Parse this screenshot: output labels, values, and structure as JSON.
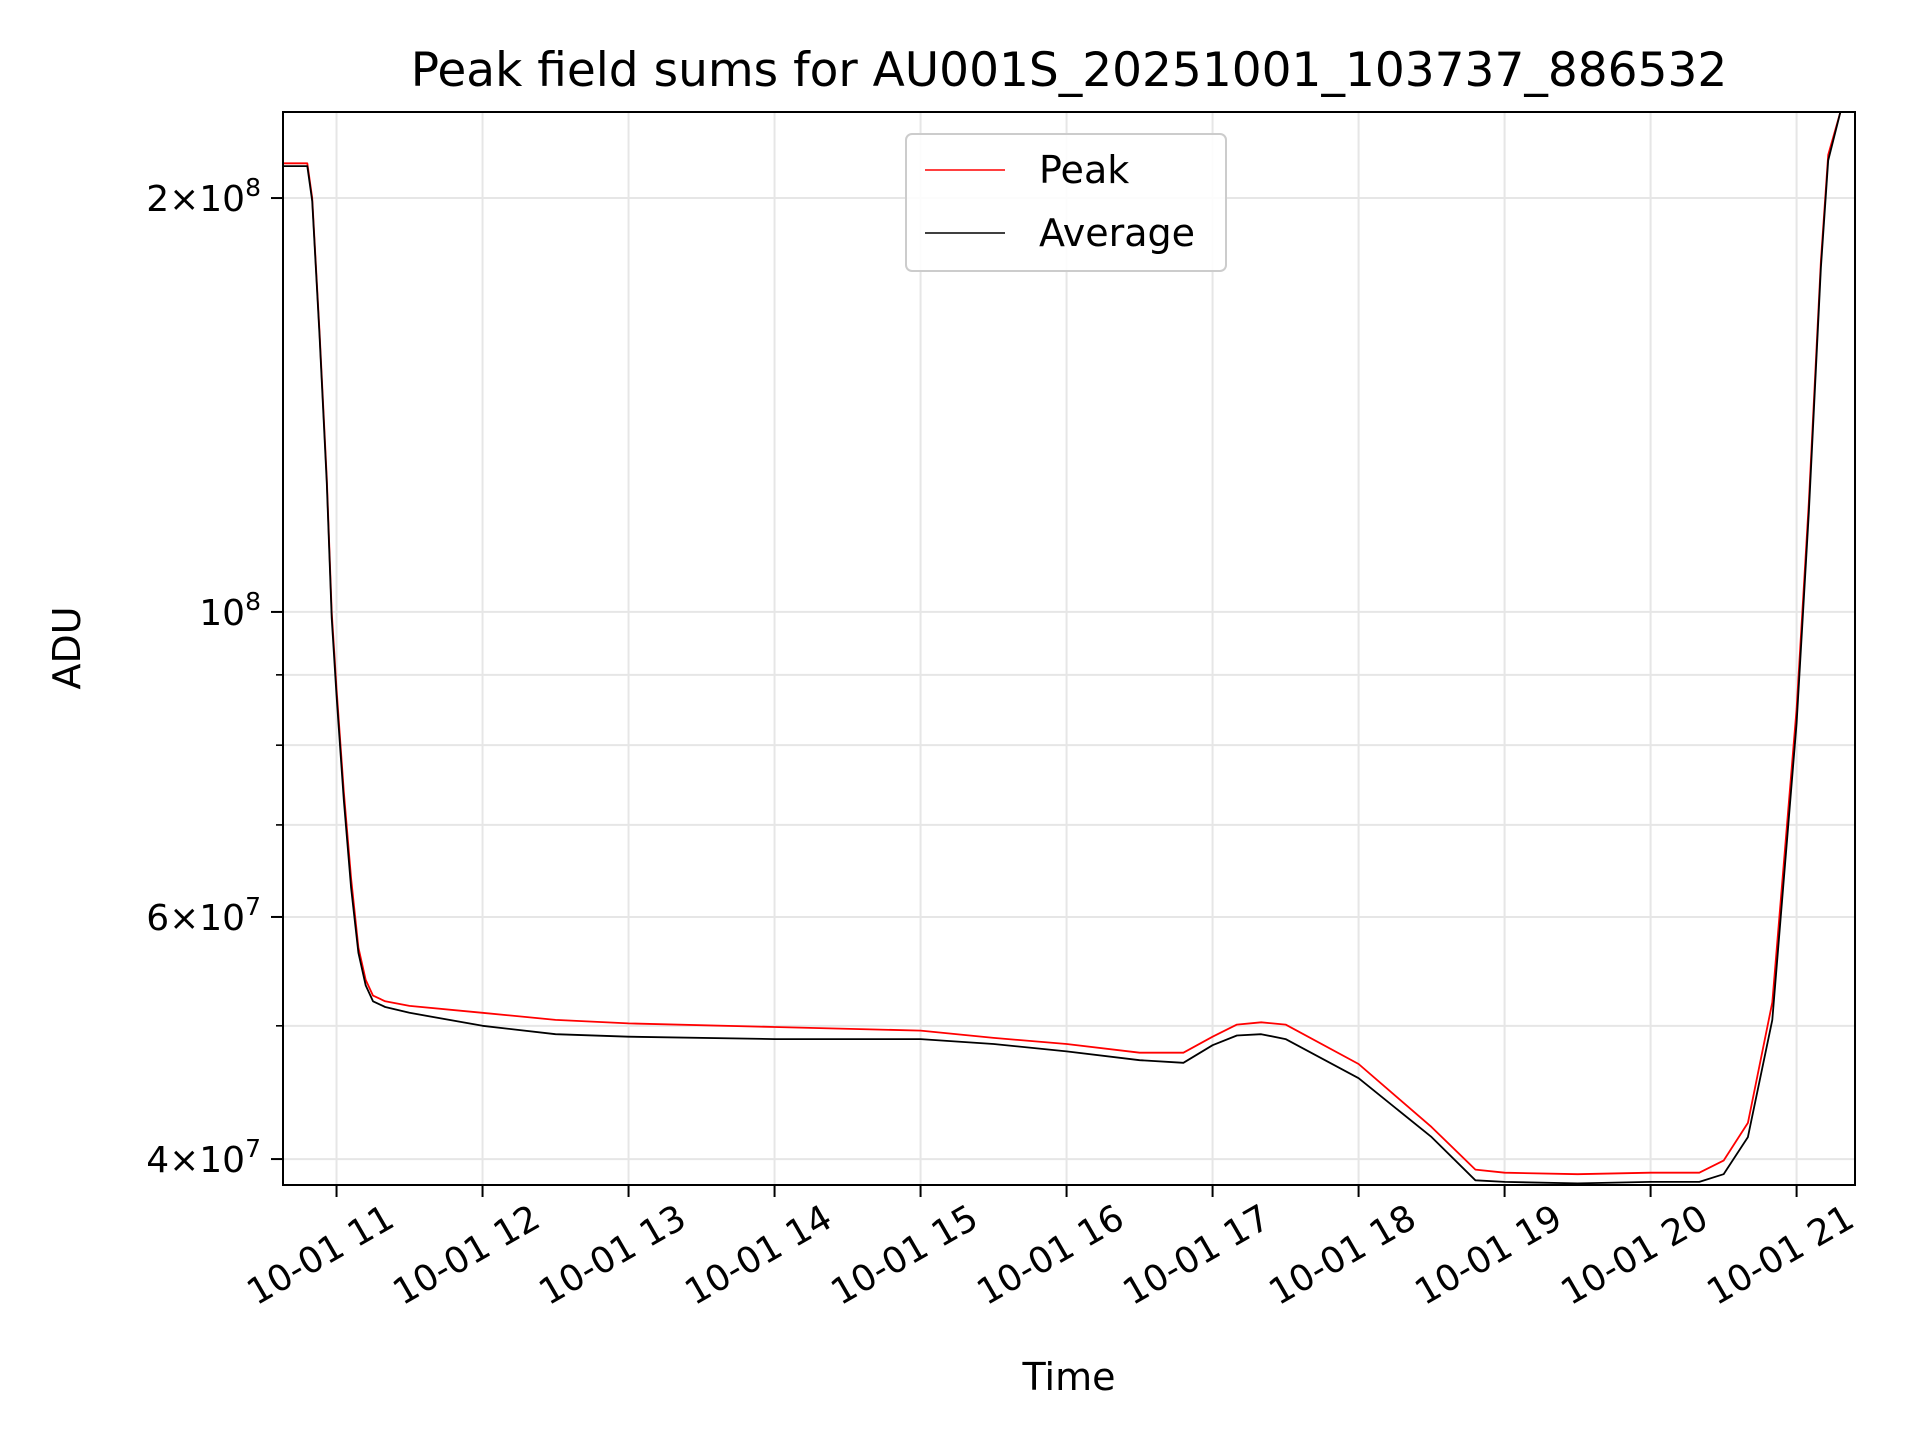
{
  "chart_data": {
    "type": "line",
    "title": "Peak field sums for AU001S_20251001_103737_886532",
    "xlabel": "Time",
    "ylabel": "ADU",
    "yscale": "log",
    "grid": true,
    "legend_position": "top-center",
    "xlim": [
      "2025-10-01 10:38",
      "2025-10-01 21:24"
    ],
    "ylim": [
      38300000,
      231000000
    ],
    "x_ticks": [
      {
        "value": "2025-10-01 11:00",
        "label": "10-01 11"
      },
      {
        "value": "2025-10-01 12:00",
        "label": "10-01 12"
      },
      {
        "value": "2025-10-01 13:00",
        "label": "10-01 13"
      },
      {
        "value": "2025-10-01 14:00",
        "label": "10-01 14"
      },
      {
        "value": "2025-10-01 15:00",
        "label": "10-01 15"
      },
      {
        "value": "2025-10-01 16:00",
        "label": "10-01 16"
      },
      {
        "value": "2025-10-01 17:00",
        "label": "10-01 17"
      },
      {
        "value": "2025-10-01 18:00",
        "label": "10-01 18"
      },
      {
        "value": "2025-10-01 19:00",
        "label": "10-01 19"
      },
      {
        "value": "2025-10-01 20:00",
        "label": "10-01 20"
      },
      {
        "value": "2025-10-01 21:00",
        "label": "10-01 21"
      }
    ],
    "y_ticks_major": [
      {
        "value": 40000000,
        "mant": "4",
        "exp": "7"
      },
      {
        "value": 60000000,
        "mant": "6",
        "exp": "7"
      },
      {
        "value": 100000000,
        "mant": "",
        "exp": "8"
      },
      {
        "value": 200000000,
        "mant": "2",
        "exp": "8"
      }
    ],
    "y_ticks_minor": [
      50000000,
      70000000,
      80000000,
      90000000
    ],
    "series": [
      {
        "name": "Peak",
        "color": "#ff0000",
        "x": [
          "2025-10-01 10:38",
          "2025-10-01 10:48",
          "2025-10-01 10:50",
          "2025-10-01 10:53",
          "2025-10-01 10:56",
          "2025-10-01 10:58",
          "2025-10-01 11:00",
          "2025-10-01 11:03",
          "2025-10-01 11:06",
          "2025-10-01 11:09",
          "2025-10-01 11:12",
          "2025-10-01 11:15",
          "2025-10-01 11:20",
          "2025-10-01 11:30",
          "2025-10-01 12:00",
          "2025-10-01 12:30",
          "2025-10-01 13:00",
          "2025-10-01 14:00",
          "2025-10-01 15:00",
          "2025-10-01 15:30",
          "2025-10-01 16:00",
          "2025-10-01 16:30",
          "2025-10-01 16:48",
          "2025-10-01 17:00",
          "2025-10-01 17:10",
          "2025-10-01 17:20",
          "2025-10-01 17:30",
          "2025-10-01 18:00",
          "2025-10-01 18:30",
          "2025-10-01 18:48",
          "2025-10-01 19:00",
          "2025-10-01 19:30",
          "2025-10-01 20:00",
          "2025-10-01 20:20",
          "2025-10-01 20:30",
          "2025-10-01 20:40",
          "2025-10-01 20:50",
          "2025-10-01 21:00",
          "2025-10-01 21:05",
          "2025-10-01 21:10",
          "2025-10-01 21:13",
          "2025-10-01 21:18",
          "2025-10-01 21:24"
        ],
        "y": [
          212000000,
          212000000,
          200000000,
          160000000,
          125000000,
          100000000,
          88000000,
          74000000,
          64000000,
          57000000,
          54000000,
          52600000,
          52100000,
          51700000,
          51100000,
          50500000,
          50200000,
          49900000,
          49600000,
          49000000,
          48500000,
          47800000,
          47800000,
          49100000,
          50100000,
          50300000,
          50100000,
          46900000,
          42200000,
          39300000,
          39100000,
          39000000,
          39100000,
          39100000,
          39900000,
          42500000,
          52000000,
          85000000,
          120000000,
          180000000,
          215000000,
          231000000,
          231000000
        ]
      },
      {
        "name": "Average",
        "color": "#000000",
        "x": [
          "2025-10-01 10:38",
          "2025-10-01 10:48",
          "2025-10-01 10:50",
          "2025-10-01 10:53",
          "2025-10-01 10:56",
          "2025-10-01 10:58",
          "2025-10-01 11:00",
          "2025-10-01 11:03",
          "2025-10-01 11:06",
          "2025-10-01 11:09",
          "2025-10-01 11:12",
          "2025-10-01 11:15",
          "2025-10-01 11:20",
          "2025-10-01 11:30",
          "2025-10-01 12:00",
          "2025-10-01 12:30",
          "2025-10-01 13:00",
          "2025-10-01 14:00",
          "2025-10-01 15:00",
          "2025-10-01 15:30",
          "2025-10-01 16:00",
          "2025-10-01 16:30",
          "2025-10-01 16:48",
          "2025-10-01 17:00",
          "2025-10-01 17:10",
          "2025-10-01 17:20",
          "2025-10-01 17:30",
          "2025-10-01 18:00",
          "2025-10-01 18:30",
          "2025-10-01 18:48",
          "2025-10-01 19:00",
          "2025-10-01 19:30",
          "2025-10-01 20:00",
          "2025-10-01 20:20",
          "2025-10-01 20:30",
          "2025-10-01 20:40",
          "2025-10-01 20:50",
          "2025-10-01 21:00",
          "2025-10-01 21:05",
          "2025-10-01 21:10",
          "2025-10-01 21:13",
          "2025-10-01 21:18",
          "2025-10-01 21:24"
        ],
        "y": [
          211000000,
          211000000,
          199000000,
          159000000,
          124000000,
          99000000,
          87000000,
          73000000,
          63000000,
          56500000,
          53500000,
          52100000,
          51600000,
          51100000,
          50000000,
          49300000,
          49100000,
          48900000,
          48900000,
          48500000,
          47900000,
          47200000,
          47000000,
          48400000,
          49200000,
          49300000,
          48900000,
          45800000,
          41500000,
          38600000,
          38500000,
          38400000,
          38500000,
          38500000,
          39000000,
          41500000,
          50500000,
          83000000,
          118000000,
          178000000,
          213000000,
          231000000,
          231000000
        ]
      }
    ]
  }
}
